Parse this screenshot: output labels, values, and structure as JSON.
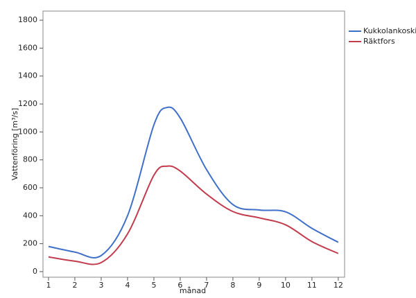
{
  "chart_data": {
    "type": "line",
    "x_label": "månad",
    "y_label": "Vattenföring [m³/s]",
    "x": [
      1,
      2,
      3,
      4,
      5,
      5.5,
      6,
      7,
      8,
      9,
      10,
      11,
      12
    ],
    "series": [
      {
        "name": "Kukkolankoski",
        "color": "#3e6fc8",
        "values": [
          180,
          140,
          115,
          400,
          1050,
          1175,
          1100,
          730,
          480,
          441,
          428,
          310,
          210
        ]
      },
      {
        "name": "Räktfors",
        "color": "#c23b4c",
        "values": [
          105,
          75,
          65,
          270,
          690,
          755,
          720,
          555,
          430,
          385,
          335,
          215,
          130
        ]
      }
    ],
    "xlim": [
      0.79,
      12.24
    ],
    "xticks": [
      1,
      2,
      3,
      4,
      5,
      6,
      7,
      8,
      9,
      10,
      11,
      12
    ],
    "ylim": [
      -40,
      1865
    ],
    "yticks": [
      0,
      200,
      400,
      600,
      800,
      1000,
      1200,
      1400,
      1600,
      1800
    ],
    "grid": false,
    "legend": "right"
  }
}
